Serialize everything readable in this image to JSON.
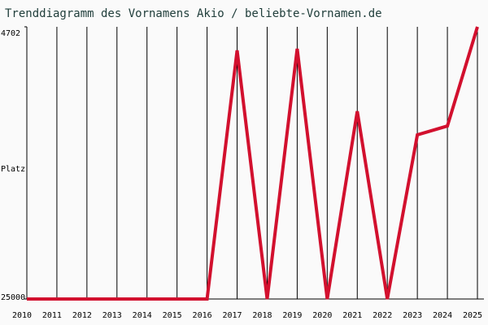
{
  "chart_data": {
    "type": "line",
    "title": "Trenddiagramm des Vornamens Akio / beliebte-Vornamen.de",
    "y_label": "Platz",
    "categories": [
      "2010",
      "2011",
      "2012",
      "2013",
      "2014",
      "2015",
      "2016",
      "2017",
      "2018",
      "2019",
      "2020",
      "2021",
      "2022",
      "2023",
      "2024",
      "2025"
    ],
    "series": [
      {
        "name": "Akio",
        "color": "#d2102e",
        "values": [
          25000,
          25000,
          25000,
          25000,
          25000,
          25000,
          25000,
          6460,
          25000,
          6340,
          25000,
          11000,
          25000,
          12760,
          12100,
          4702
        ]
      }
    ],
    "ylim": [
      25000,
      4702
    ],
    "yticks": [
      4702,
      25000
    ],
    "grid": true
  }
}
